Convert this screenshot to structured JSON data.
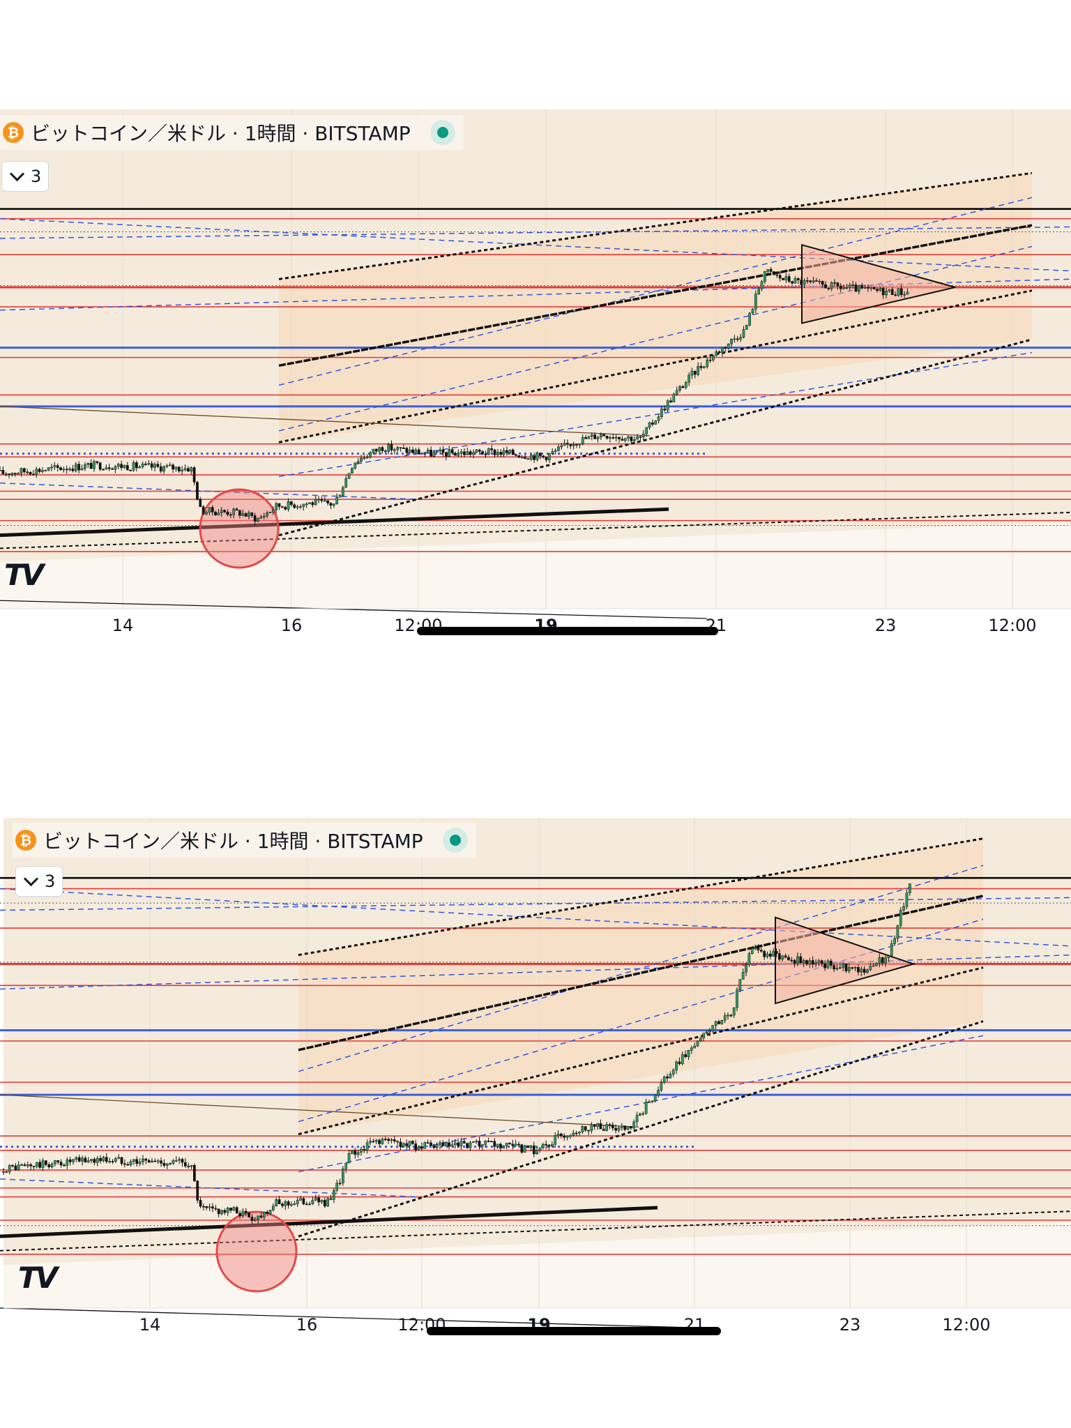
{
  "panels": [
    {
      "legend": {
        "title": "ビットコイン／米ドル · 1時間 · BITSTAMP",
        "status": "connected"
      },
      "collapse_count": "3",
      "x_labels": [
        "14",
        "16",
        "12:00",
        "19",
        "21",
        "23",
        "12:00"
      ]
    },
    {
      "legend": {
        "title": "ビットコイン／米ドル · 1時間 · BITSTAMP",
        "status": "connected"
      },
      "collapse_count": "3",
      "x_labels": [
        "14",
        "16",
        "12:00",
        "19",
        "21",
        "23",
        "12:00"
      ]
    }
  ],
  "icons": {
    "coin": "bitcoin-icon",
    "status": "status-dot-icon",
    "collapse": "chevron-down-icon",
    "logo": "tradingview-logo"
  },
  "colors": {
    "background": "#f5ebdc",
    "channel": "#f5d9b8",
    "red_level": "#e53935",
    "blue_level": "#3d5fd6",
    "blue_dash": "#2f55e6",
    "highlight": "#f08080"
  },
  "chart_data": [
    {
      "type": "candlestick",
      "title": "ビットコイン／米ドル · 1時間 · BITSTAMP",
      "x": [
        "14",
        "16",
        "12:00",
        "19",
        "21",
        "23",
        "12:00"
      ],
      "trend": [
        {
          "t": 0.0,
          "p": 0.36
        },
        {
          "t": 0.08,
          "p": 0.4
        },
        {
          "t": 0.1,
          "p": 0.41
        },
        {
          "t": 0.2,
          "p": 0.39
        },
        {
          "t": 0.21,
          "p": 0.13
        },
        {
          "t": 0.25,
          "p": 0.12
        },
        {
          "t": 0.27,
          "p": 0.08
        },
        {
          "t": 0.29,
          "p": 0.16
        },
        {
          "t": 0.33,
          "p": 0.18
        },
        {
          "t": 0.35,
          "p": 0.17
        },
        {
          "t": 0.37,
          "p": 0.43
        },
        {
          "t": 0.4,
          "p": 0.52
        },
        {
          "t": 0.45,
          "p": 0.48
        },
        {
          "t": 0.52,
          "p": 0.49
        },
        {
          "t": 0.57,
          "p": 0.46
        },
        {
          "t": 0.6,
          "p": 0.55
        },
        {
          "t": 0.63,
          "p": 0.6
        },
        {
          "t": 0.67,
          "p": 0.57
        },
        {
          "t": 0.7,
          "p": 0.8
        },
        {
          "t": 0.73,
          "p": 1.0
        },
        {
          "t": 0.75,
          "p": 1.1
        },
        {
          "t": 0.78,
          "p": 1.24
        },
        {
          "t": 0.8,
          "p": 1.6
        },
        {
          "t": 0.82,
          "p": 1.55
        },
        {
          "t": 0.85,
          "p": 1.52
        },
        {
          "t": 0.88,
          "p": 1.5
        },
        {
          "t": 0.91,
          "p": 1.48
        },
        {
          "t": 0.95,
          "p": 1.47
        }
      ]
    },
    {
      "type": "candlestick",
      "title": "ビットコイン／米ドル · 1時間 · BITSTAMP",
      "x": [
        "14",
        "16",
        "12:00",
        "19",
        "21",
        "23",
        "12:00"
      ],
      "trend": [
        {
          "t": 0.0,
          "p": 0.36
        },
        {
          "t": 0.08,
          "p": 0.4
        },
        {
          "t": 0.1,
          "p": 0.41
        },
        {
          "t": 0.2,
          "p": 0.39
        },
        {
          "t": 0.21,
          "p": 0.13
        },
        {
          "t": 0.25,
          "p": 0.12
        },
        {
          "t": 0.27,
          "p": 0.08
        },
        {
          "t": 0.29,
          "p": 0.16
        },
        {
          "t": 0.33,
          "p": 0.18
        },
        {
          "t": 0.35,
          "p": 0.17
        },
        {
          "t": 0.37,
          "p": 0.43
        },
        {
          "t": 0.4,
          "p": 0.52
        },
        {
          "t": 0.45,
          "p": 0.48
        },
        {
          "t": 0.52,
          "p": 0.49
        },
        {
          "t": 0.57,
          "p": 0.46
        },
        {
          "t": 0.6,
          "p": 0.55
        },
        {
          "t": 0.63,
          "p": 0.6
        },
        {
          "t": 0.67,
          "p": 0.57
        },
        {
          "t": 0.7,
          "p": 0.8
        },
        {
          "t": 0.73,
          "p": 1.0
        },
        {
          "t": 0.75,
          "p": 1.1
        },
        {
          "t": 0.78,
          "p": 1.24
        },
        {
          "t": 0.8,
          "p": 1.6
        },
        {
          "t": 0.82,
          "p": 1.55
        },
        {
          "t": 0.85,
          "p": 1.52
        },
        {
          "t": 0.88,
          "p": 1.5
        },
        {
          "t": 0.91,
          "p": 1.48
        },
        {
          "t": 0.93,
          "p": 1.47
        },
        {
          "t": 0.95,
          "p": 1.58
        },
        {
          "t": 0.97,
          "p": 1.97
        }
      ]
    }
  ]
}
